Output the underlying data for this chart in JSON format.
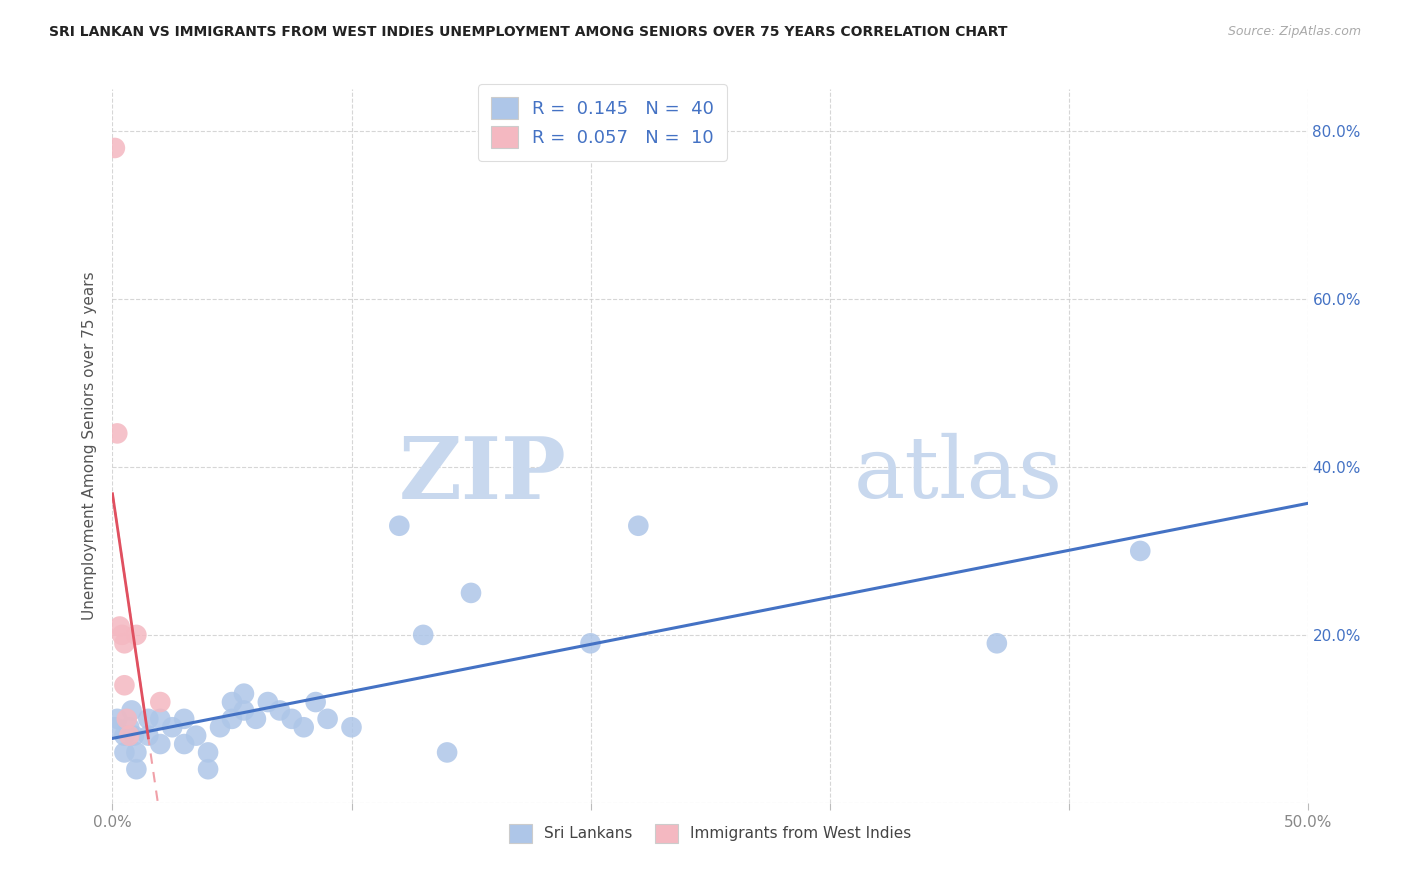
{
  "title": "SRI LANKAN VS IMMIGRANTS FROM WEST INDIES UNEMPLOYMENT AMONG SENIORS OVER 75 YEARS CORRELATION CHART",
  "source": "Source: ZipAtlas.com",
  "ylabel": "Unemployment Among Seniors over 75 years",
  "xlim": [
    0,
    0.5
  ],
  "ylim": [
    0,
    0.85
  ],
  "sri_lankan_x": [
    0.001,
    0.002,
    0.005,
    0.005,
    0.007,
    0.008,
    0.009,
    0.01,
    0.01,
    0.015,
    0.015,
    0.02,
    0.02,
    0.025,
    0.03,
    0.03,
    0.035,
    0.04,
    0.04,
    0.045,
    0.05,
    0.05,
    0.055,
    0.055,
    0.06,
    0.065,
    0.07,
    0.075,
    0.08,
    0.085,
    0.09,
    0.1,
    0.12,
    0.13,
    0.14,
    0.15,
    0.2,
    0.22,
    0.37,
    0.43
  ],
  "sri_lankan_y": [
    0.09,
    0.1,
    0.08,
    0.06,
    0.09,
    0.11,
    0.08,
    0.06,
    0.04,
    0.1,
    0.08,
    0.07,
    0.1,
    0.09,
    0.1,
    0.07,
    0.08,
    0.06,
    0.04,
    0.09,
    0.1,
    0.12,
    0.11,
    0.13,
    0.1,
    0.12,
    0.11,
    0.1,
    0.09,
    0.12,
    0.1,
    0.09,
    0.33,
    0.2,
    0.06,
    0.25,
    0.19,
    0.33,
    0.19,
    0.3
  ],
  "west_indies_x": [
    0.001,
    0.002,
    0.003,
    0.004,
    0.005,
    0.005,
    0.006,
    0.007,
    0.01,
    0.02
  ],
  "west_indies_y": [
    0.78,
    0.44,
    0.21,
    0.2,
    0.19,
    0.14,
    0.1,
    0.08,
    0.2,
    0.12
  ],
  "sri_lankan_R": 0.145,
  "sri_lankan_N": 40,
  "west_indies_R": 0.057,
  "west_indies_N": 10,
  "sri_lankan_color": "#aec6e8",
  "west_indies_color": "#f4b8c1",
  "sri_lankan_line_color": "#4472c4",
  "west_indies_solid_color": "#e05060",
  "west_indies_dash_color": "#f0a0a8",
  "watermark_zip_color": "#c8d8ee",
  "watermark_atlas_color": "#c8d8ee",
  "background_color": "#ffffff",
  "grid_color": "#cccccc",
  "title_color": "#222222",
  "axis_label_color": "#555555",
  "tick_label_color": "#888888",
  "right_tick_color": "#4472c4"
}
